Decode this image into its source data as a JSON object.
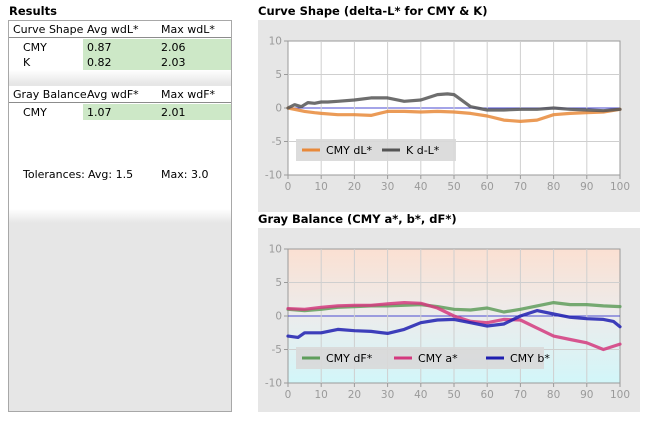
{
  "results": {
    "title": "Results",
    "curve_table": {
      "headers": [
        "Curve Shape",
        "Avg wdL*",
        "Max wdL*"
      ],
      "rows": [
        {
          "label": "CMY",
          "avg": "0.87",
          "max": "2.06"
        },
        {
          "label": "K",
          "avg": "0.82",
          "max": "2.03"
        }
      ]
    },
    "gray_table": {
      "headers": [
        "Gray Balance",
        "Avg wdF*",
        "Max wdF*"
      ],
      "rows": [
        {
          "label": "CMY",
          "avg": "1.07",
          "max": "2.01"
        }
      ]
    },
    "tolerances": {
      "label": "Tolerances:",
      "avg": "Avg: 1.5",
      "max": "Max: 3.0"
    }
  },
  "colors": {
    "cmy_dl": "#e8893a",
    "k_dl": "#555555",
    "cmy_df": "#5f9e5c",
    "cmy_a": "#d4397e",
    "cmy_b": "#1f1fb0",
    "highlight_green": "#cde8c7",
    "panel_bg": "#e6e6e6"
  },
  "chart_data": [
    {
      "type": "line",
      "title": "Curve Shape (delta-L* for CMY & K)",
      "xlim": [
        0,
        100
      ],
      "ylim": [
        -10,
        10
      ],
      "x_ticks": [
        0,
        10,
        20,
        30,
        40,
        50,
        60,
        70,
        80,
        90,
        100
      ],
      "y_ticks": [
        10,
        5,
        0,
        -5,
        -10
      ],
      "grid": true,
      "legend": "bottom-left",
      "series": [
        {
          "name": "CMY dL*",
          "color": "#e8893a",
          "x": [
            0,
            3,
            5,
            8,
            10,
            15,
            20,
            25,
            30,
            35,
            40,
            45,
            50,
            55,
            60,
            65,
            70,
            75,
            80,
            85,
            90,
            95,
            100
          ],
          "y": [
            0,
            -0.3,
            -0.5,
            -0.7,
            -0.8,
            -1.0,
            -1.0,
            -1.1,
            -0.5,
            -0.5,
            -0.6,
            -0.5,
            -0.6,
            -0.8,
            -1.2,
            -1.8,
            -2.0,
            -1.8,
            -1.0,
            -0.8,
            -0.7,
            -0.6,
            -0.2
          ]
        },
        {
          "name": "K d-L*",
          "color": "#555555",
          "x": [
            0,
            2,
            4,
            6,
            8,
            10,
            12,
            15,
            20,
            25,
            30,
            35,
            40,
            45,
            48,
            50,
            55,
            60,
            65,
            70,
            75,
            80,
            85,
            90,
            95,
            100
          ],
          "y": [
            0,
            0.5,
            0.2,
            0.8,
            0.7,
            0.9,
            0.9,
            1.0,
            1.2,
            1.5,
            1.5,
            1.0,
            1.2,
            2.0,
            2.1,
            2.0,
            0.2,
            -0.3,
            -0.3,
            -0.2,
            -0.2,
            0.0,
            -0.2,
            -0.3,
            -0.4,
            -0.2
          ]
        }
      ]
    },
    {
      "type": "line",
      "title": "Gray Balance (CMY a*, b*, dF*)",
      "xlim": [
        0,
        100
      ],
      "ylim": [
        -10,
        10
      ],
      "x_ticks": [
        0,
        10,
        20,
        30,
        40,
        50,
        60,
        70,
        80,
        90,
        100
      ],
      "y_ticks": [
        10,
        5,
        0,
        -5,
        -10
      ],
      "grid": true,
      "legend": "bottom-left",
      "series": [
        {
          "name": "CMY dF*",
          "color": "#5f9e5c",
          "x": [
            0,
            5,
            10,
            15,
            20,
            25,
            30,
            35,
            40,
            45,
            50,
            55,
            60,
            65,
            70,
            75,
            80,
            85,
            90,
            95,
            100
          ],
          "y": [
            1.0,
            0.8,
            1.0,
            1.3,
            1.4,
            1.5,
            1.5,
            1.6,
            1.7,
            1.4,
            1.0,
            0.9,
            1.2,
            0.6,
            1.0,
            1.5,
            2.0,
            1.7,
            1.7,
            1.5,
            1.4
          ]
        },
        {
          "name": "CMY a*",
          "color": "#d4397e",
          "x": [
            0,
            5,
            10,
            15,
            20,
            25,
            30,
            35,
            40,
            45,
            50,
            55,
            60,
            65,
            70,
            75,
            80,
            85,
            90,
            95,
            100
          ],
          "y": [
            1.1,
            1.0,
            1.3,
            1.5,
            1.6,
            1.6,
            1.8,
            2.0,
            1.9,
            1.2,
            0.0,
            -0.8,
            -1.0,
            -0.5,
            -0.6,
            -1.8,
            -3.0,
            -3.5,
            -4.0,
            -5.0,
            -4.2
          ]
        },
        {
          "name": "CMY b*",
          "color": "#1f1fb0",
          "x": [
            0,
            3,
            5,
            10,
            15,
            20,
            25,
            30,
            35,
            40,
            45,
            50,
            55,
            60,
            65,
            70,
            75,
            80,
            85,
            90,
            95,
            98,
            100
          ],
          "y": [
            -3.0,
            -3.2,
            -2.5,
            -2.5,
            -2.0,
            -2.2,
            -2.3,
            -2.6,
            -2.0,
            -1.0,
            -0.6,
            -0.5,
            -1.0,
            -1.5,
            -1.2,
            0.0,
            0.8,
            0.3,
            -0.2,
            -0.4,
            -0.5,
            -0.8,
            -1.6
          ]
        }
      ]
    }
  ]
}
